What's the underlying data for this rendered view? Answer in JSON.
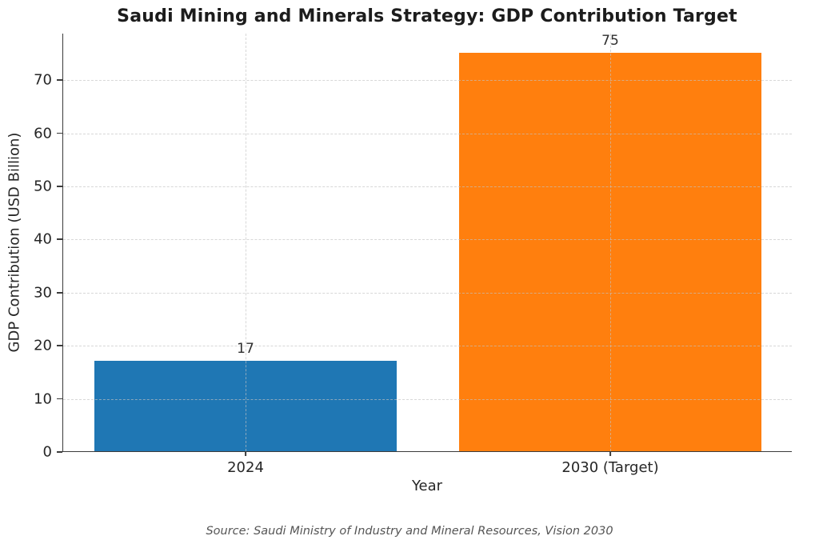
{
  "chart_data": {
    "type": "bar",
    "title": "Saudi Mining and Minerals Strategy: GDP Contribution Target",
    "categories": [
      "2024",
      "2030 (Target)"
    ],
    "values": [
      17,
      75
    ],
    "value_labels": [
      "17",
      "75"
    ],
    "bar_colors": [
      "#1f77b4",
      "#ff7f0e"
    ],
    "xlabel": "Year",
    "ylabel": "GDP Contribution (USD Billion)",
    "ylim": [
      0,
      78.75
    ],
    "yticks": [
      0,
      10,
      20,
      30,
      40,
      50,
      60,
      70
    ],
    "grid": true,
    "grid_style": "dashed",
    "legend_position": "none",
    "source": "Source: Saudi Ministry of Industry and Mineral Resources, Vision 2030"
  }
}
